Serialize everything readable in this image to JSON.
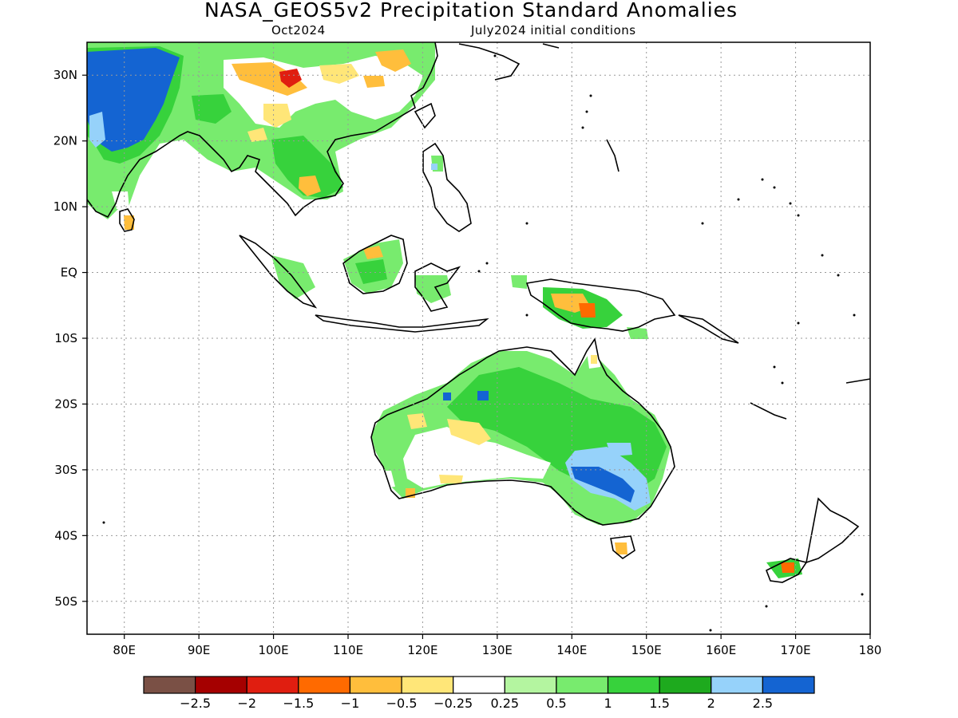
{
  "title": "NASA_GEOS5v2 Precipitation Standard Anomalies",
  "subtitle_left": "Oct2024",
  "subtitle_right": "July2024 initial conditions",
  "lat_labels": [
    "30N",
    "20N",
    "10N",
    "EQ",
    "10S",
    "20S",
    "30S",
    "40S",
    "50S"
  ],
  "lon_labels": [
    "80E",
    "90E",
    "100E",
    "110E",
    "120E",
    "130E",
    "140E",
    "150E",
    "160E",
    "170E",
    "180"
  ],
  "colorbar": {
    "colors": [
      "#7a5045",
      "#a50000",
      "#e01e10",
      "#ff6a00",
      "#ffbe3c",
      "#ffe678",
      "#ffffff",
      "#b4f5a0",
      "#78eb6e",
      "#37d23c",
      "#1eaa1e",
      "#96d2fa",
      "#1464d2"
    ],
    "labels": [
      "−2.5",
      "−2",
      "−1.5",
      "−1",
      "−0.5",
      "−0.25",
      "0.25",
      "0.5",
      "1",
      "1.5",
      "2",
      "2.5"
    ]
  }
}
